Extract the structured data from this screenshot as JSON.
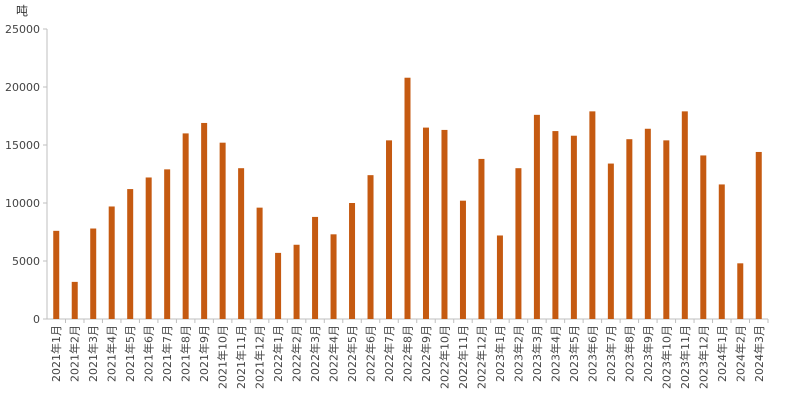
{
  "chart_data": {
    "type": "bar",
    "unit_label": "吨",
    "bar_color": "#C55A11",
    "ylim": [
      0,
      25000
    ],
    "y_ticks": [
      0,
      5000,
      10000,
      15000,
      20000,
      25000
    ],
    "grid": false,
    "legend": "none",
    "categories": [
      "2021年1月",
      "2021年2月",
      "2021年3月",
      "2021年4月",
      "2021年5月",
      "2021年6月",
      "2021年7月",
      "2021年8月",
      "2021年9月",
      "2021年10月",
      "2021年11月",
      "2021年12月",
      "2022年1月",
      "2022年2月",
      "2022年3月",
      "2022年4月",
      "2022年5月",
      "2022年6月",
      "2022年7月",
      "2022年8月",
      "2022年9月",
      "2022年10月",
      "2022年11月",
      "2022年12月",
      "2023年1月",
      "2023年2月",
      "2023年3月",
      "2023年4月",
      "2023年5月",
      "2023年6月",
      "2023年7月",
      "2023年8月",
      "2023年9月",
      "2023年10月",
      "2023年11月",
      "2023年12月",
      "2024年1月",
      "2024年2月",
      "2024年3月"
    ],
    "values": [
      7600,
      3200,
      7800,
      9700,
      11200,
      12200,
      12900,
      16000,
      16900,
      15200,
      13000,
      9600,
      5700,
      6400,
      8800,
      7300,
      10000,
      12400,
      15400,
      20800,
      16500,
      16300,
      10200,
      13800,
      7200,
      13000,
      17600,
      16200,
      15800,
      17900,
      13400,
      15500,
      16400,
      15400,
      17900,
      14100,
      11600,
      4800,
      14400
    ]
  }
}
